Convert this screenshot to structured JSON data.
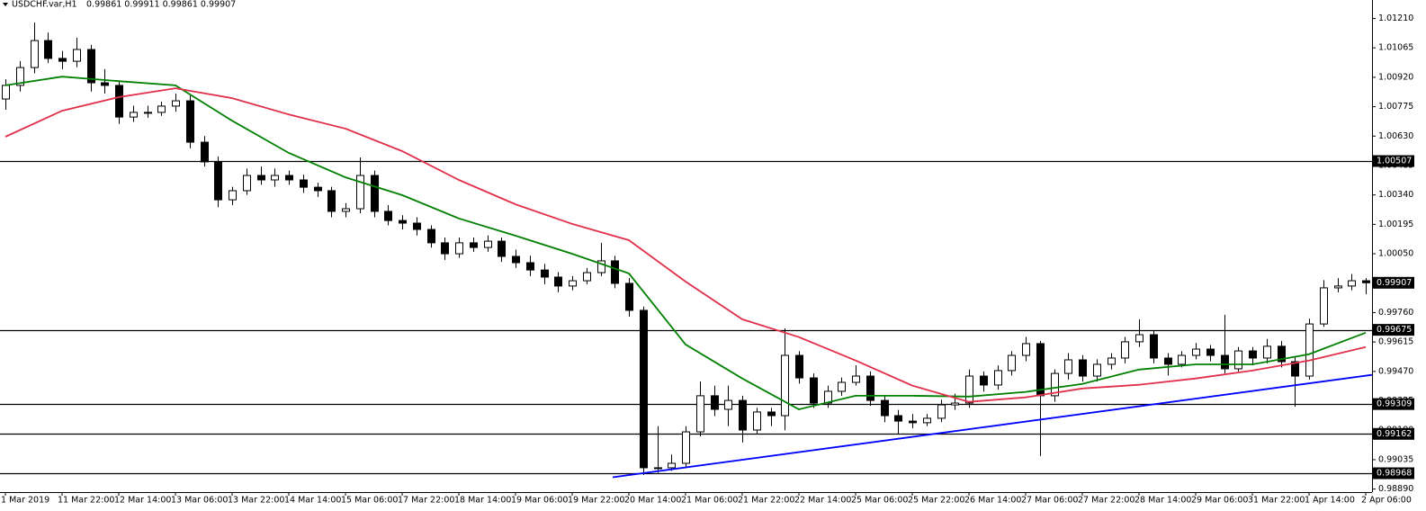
{
  "chart_data": {
    "type": "candlestick",
    "title": "USDCHF.var,H1",
    "subtitle": "0.99861 0.99911 0.99861 0.99907",
    "categories": [
      "1 Mar 2019",
      null,
      null,
      null,
      "11 Mar 22:00",
      null,
      null,
      null,
      "12 Mar 14:00",
      null,
      null,
      null,
      "13 Mar 06:00",
      null,
      null,
      null,
      "13 Mar 22:00",
      null,
      null,
      null,
      "14 Mar 14:00",
      null,
      null,
      null,
      "15 Mar 06:00",
      null,
      null,
      null,
      "17 Mar 22:00",
      null,
      null,
      null,
      "18 Mar 14:00",
      null,
      null,
      null,
      "19 Mar 06:00",
      null,
      null,
      null,
      "19 Mar 22:00",
      null,
      null,
      null,
      "20 Mar 14:00",
      null,
      null,
      null,
      "21 Mar 06:00",
      null,
      null,
      null,
      "21 Mar 22:00",
      null,
      null,
      null,
      "22 Mar 14:00",
      null,
      null,
      null,
      "25 Mar 06:00",
      null,
      null,
      null,
      "25 Mar 22:00",
      null,
      null,
      null,
      "26 Mar 14:00",
      null,
      null,
      null,
      "27 Mar 06:00",
      null,
      null,
      null,
      "27 Mar 22:00",
      null,
      null,
      null,
      "28 Mar 14:00",
      null,
      null,
      null,
      "29 Mar 06:00",
      null,
      null,
      null,
      "31 Mar 22:00",
      null,
      null,
      null,
      "1 Apr 14:00",
      null,
      null,
      null,
      "2 Apr 06:00"
    ],
    "candles": [
      [
        1.00813,
        1.0091,
        1.0076,
        1.0088
      ],
      [
        1.0088,
        1.01,
        1.0085,
        1.00968
      ],
      [
        1.00968,
        1.0119,
        1.0094,
        1.01101
      ],
      [
        1.01101,
        1.0114,
        1.0099,
        1.01013
      ],
      [
        1.01013,
        1.0105,
        1.0096,
        1.00999
      ],
      [
        1.00999,
        1.01115,
        1.0097,
        1.01057
      ],
      [
        1.01057,
        1.0108,
        1.0085,
        1.00893
      ],
      [
        1.00893,
        1.0096,
        1.0084,
        1.0088
      ],
      [
        1.0088,
        1.009,
        1.0069,
        1.00724
      ],
      [
        1.00724,
        1.0078,
        1.007,
        1.00747
      ],
      [
        1.00747,
        1.0078,
        1.0072,
        1.00747
      ],
      [
        1.00747,
        1.008,
        1.0073,
        1.00778
      ],
      [
        1.00778,
        1.0084,
        1.0075,
        1.00804
      ],
      [
        1.00804,
        1.0083,
        1.0057,
        1.006
      ],
      [
        1.006,
        1.0063,
        1.0048,
        1.00503
      ],
      [
        1.00503,
        1.0053,
        1.0028,
        1.00316
      ],
      [
        1.00316,
        1.0038,
        1.0029,
        1.00361
      ],
      [
        1.00361,
        1.0047,
        1.0034,
        1.00436
      ],
      [
        1.00436,
        1.0048,
        1.0039,
        1.00414
      ],
      [
        1.00414,
        1.0047,
        1.0038,
        1.00436
      ],
      [
        1.00436,
        1.0046,
        1.0039,
        1.00414
      ],
      [
        1.00414,
        1.0044,
        1.0035,
        1.00378
      ],
      [
        1.00378,
        1.004,
        1.0033,
        1.00361
      ],
      [
        1.00361,
        1.0038,
        1.0023,
        1.00259
      ],
      [
        1.00259,
        1.003,
        1.0023,
        1.00272
      ],
      [
        1.00272,
        1.00525,
        1.0025,
        1.00436
      ],
      [
        1.00436,
        1.0046,
        1.0023,
        1.00259
      ],
      [
        1.00259,
        1.0029,
        1.0019,
        1.00214
      ],
      [
        1.00214,
        1.0024,
        1.0017,
        1.00201
      ],
      [
        1.00201,
        1.0023,
        1.0014,
        1.0017
      ],
      [
        1.0017,
        1.0019,
        1.0008,
        1.00104
      ],
      [
        1.00104,
        1.0013,
        1.0002,
        1.0005
      ],
      [
        1.0005,
        1.0013,
        1.0003,
        1.00104
      ],
      [
        1.00104,
        1.0013,
        1.0006,
        1.00081
      ],
      [
        1.00081,
        1.0014,
        1.0006,
        1.00112
      ],
      [
        1.00112,
        1.0013,
        1.0001,
        1.00037
      ],
      [
        1.00037,
        1.0007,
        0.9998,
        1.00006
      ],
      [
        1.00006,
        1.0004,
        0.9994,
        0.9997
      ],
      [
        0.9997,
        1.0,
        0.999,
        0.99935
      ],
      [
        0.99935,
        0.9996,
        0.9986,
        0.99891
      ],
      [
        0.99891,
        0.9994,
        0.9987,
        0.99917
      ],
      [
        0.99917,
        0.9998,
        0.999,
        0.99957
      ],
      [
        0.99957,
        1.00104,
        0.9994,
        1.00015
      ],
      [
        1.00015,
        1.0004,
        0.9988,
        0.99904
      ],
      [
        0.99904,
        0.9993,
        0.9974,
        0.99771
      ],
      [
        0.99771,
        0.9979,
        0.98959,
        0.98995
      ],
      [
        0.98995,
        0.992,
        0.9897,
        0.98995
      ],
      [
        0.98995,
        0.9906,
        0.9898,
        0.99017
      ],
      [
        0.99017,
        0.992,
        0.99,
        0.99172
      ],
      [
        0.99172,
        0.9942,
        0.9915,
        0.9935
      ],
      [
        0.9935,
        0.994,
        0.9925,
        0.99283
      ],
      [
        0.99283,
        0.994,
        0.992,
        0.99327
      ],
      [
        0.99327,
        0.9935,
        0.9912,
        0.99181
      ],
      [
        0.99181,
        0.9929,
        0.9916,
        0.9927
      ],
      [
        0.9927,
        0.9929,
        0.992,
        0.99252
      ],
      [
        0.99252,
        0.99682,
        0.9918,
        0.99549
      ],
      [
        0.99549,
        0.9957,
        0.9941,
        0.99438
      ],
      [
        0.99438,
        0.9946,
        0.9929,
        0.99314
      ],
      [
        0.99314,
        0.994,
        0.9929,
        0.99372
      ],
      [
        0.99372,
        0.9944,
        0.9935,
        0.99416
      ],
      [
        0.99416,
        0.995,
        0.994,
        0.99447
      ],
      [
        0.99447,
        0.9947,
        0.993,
        0.99327
      ],
      [
        0.99327,
        0.9935,
        0.9922,
        0.99252
      ],
      [
        0.99252,
        0.9928,
        0.9916,
        0.99225
      ],
      [
        0.99225,
        0.9926,
        0.9919,
        0.99217
      ],
      [
        0.99217,
        0.9926,
        0.992,
        0.99239
      ],
      [
        0.99239,
        0.9933,
        0.9922,
        0.99305
      ],
      [
        0.99305,
        0.9936,
        0.9928,
        0.99314
      ],
      [
        0.99314,
        0.9948,
        0.9929,
        0.99447
      ],
      [
        0.99447,
        0.9947,
        0.9937,
        0.99403
      ],
      [
        0.99403,
        0.995,
        0.9938,
        0.99474
      ],
      [
        0.99474,
        0.9957,
        0.9945,
        0.99549
      ],
      [
        0.99549,
        0.9964,
        0.9952,
        0.99607
      ],
      [
        0.99607,
        0.9962,
        0.99053,
        0.9935
      ],
      [
        0.9935,
        0.9948,
        0.9932,
        0.9946
      ],
      [
        0.9946,
        0.9956,
        0.9943,
        0.99527
      ],
      [
        0.99527,
        0.9955,
        0.9942,
        0.99447
      ],
      [
        0.99447,
        0.9953,
        0.9942,
        0.99505
      ],
      [
        0.99505,
        0.9956,
        0.9948,
        0.99536
      ],
      [
        0.99536,
        0.9964,
        0.9951,
        0.99616
      ],
      [
        0.99616,
        0.99727,
        0.9959,
        0.99651
      ],
      [
        0.99651,
        0.9967,
        0.9951,
        0.99536
      ],
      [
        0.99536,
        0.9956,
        0.9945,
        0.99505
      ],
      [
        0.99505,
        0.9957,
        0.9949,
        0.99549
      ],
      [
        0.99549,
        0.9961,
        0.9953,
        0.9958
      ],
      [
        0.9958,
        0.996,
        0.9952,
        0.99549
      ],
      [
        0.99549,
        0.99749,
        0.9946,
        0.99483
      ],
      [
        0.99483,
        0.9959,
        0.9947,
        0.99571
      ],
      [
        0.99571,
        0.9959,
        0.995,
        0.99536
      ],
      [
        0.99536,
        0.9963,
        0.9951,
        0.99594
      ],
      [
        0.99594,
        0.9962,
        0.9949,
        0.99518
      ],
      [
        0.99518,
        0.9954,
        0.99296,
        0.99447
      ],
      [
        0.99447,
        0.9973,
        0.9943,
        0.99704
      ],
      [
        0.99704,
        0.9992,
        0.9969,
        0.99882
      ],
      [
        0.99882,
        0.9993,
        0.9986,
        0.99891
      ],
      [
        0.99891,
        0.9995,
        0.9987,
        0.99917
      ],
      [
        0.99917,
        0.9993,
        0.9985,
        0.99907
      ]
    ],
    "lines": [
      {
        "color": "#008000",
        "x": [
          0,
          4,
          8,
          12,
          16,
          20,
          24,
          28,
          32,
          36,
          40,
          44,
          48,
          52,
          56,
          60,
          64,
          68,
          72,
          76,
          80,
          84,
          88,
          92,
          96
        ],
        "values": [
          1.0088,
          1.00923,
          1.00901,
          1.0088,
          1.00706,
          1.00547,
          1.00427,
          1.00339,
          1.00224,
          1.00139,
          1.0005,
          0.99953,
          0.99603,
          0.99435,
          0.99283,
          0.9935,
          0.9935,
          0.99346,
          0.99369,
          0.99408,
          0.99479,
          0.99505,
          0.99505,
          0.99555,
          0.99661
        ]
      },
      {
        "color": "#e0304a",
        "x": [
          0,
          4,
          8,
          12,
          16,
          20,
          24,
          28,
          32,
          36,
          40,
          44,
          48,
          52,
          56,
          60,
          64,
          68,
          72,
          76,
          80,
          84,
          88,
          92,
          96
        ],
        "values": [
          1.00627,
          1.00755,
          1.00822,
          1.00866,
          1.00817,
          1.00737,
          1.00667,
          1.00556,
          1.00414,
          1.00294,
          1.00197,
          1.00117,
          0.99913,
          0.99727,
          0.99639,
          0.99524,
          0.994,
          0.9932,
          0.99342,
          0.99386,
          0.99404,
          0.99435,
          0.99474,
          0.99524,
          0.9959
        ]
      },
      {
        "color": "#0000ff",
        "x": [
          42.86,
          96.44
        ],
        "values": [
          0.98948,
          0.99453
        ]
      }
    ],
    "levels": [
      {
        "value": 1.00507,
        "label": "1.00507"
      },
      {
        "value": 0.99675,
        "label": "0.99675"
      },
      {
        "value": 0.99309,
        "label": "0.99309"
      },
      {
        "value": 0.99162,
        "label": "0.99162"
      },
      {
        "value": 0.98968,
        "label": "0.98968"
      }
    ],
    "last": {
      "value": 0.99907,
      "label": "0.99907"
    },
    "ylim": [
      0.98875,
      1.01301
    ],
    "yticks": [
      {
        "value": 1.0121,
        "label": "1.01210"
      },
      {
        "value": 1.01065,
        "label": "1.01065"
      },
      {
        "value": 1.0092,
        "label": "1.00920"
      },
      {
        "value": 1.00775,
        "label": "1.00775"
      },
      {
        "value": 1.0063,
        "label": "1.00630"
      },
      {
        "value": 1.00485,
        "label": "1.00485"
      },
      {
        "value": 1.0034,
        "label": "1.00340"
      },
      {
        "value": 1.00195,
        "label": "1.00195"
      },
      {
        "value": 1.0005,
        "label": "1.00050"
      },
      {
        "value": 0.99905,
        "label": "0.99905"
      },
      {
        "value": 0.9976,
        "label": "0.99760"
      },
      {
        "value": 0.99615,
        "label": "0.99615"
      },
      {
        "value": 0.9947,
        "label": "0.99470"
      },
      {
        "value": 0.99325,
        "label": "0.99325"
      },
      {
        "value": 0.9918,
        "label": "0.99180"
      },
      {
        "value": 0.99035,
        "label": "0.99035"
      },
      {
        "value": 0.9889,
        "label": "0.98890"
      }
    ],
    "grid": false
  }
}
